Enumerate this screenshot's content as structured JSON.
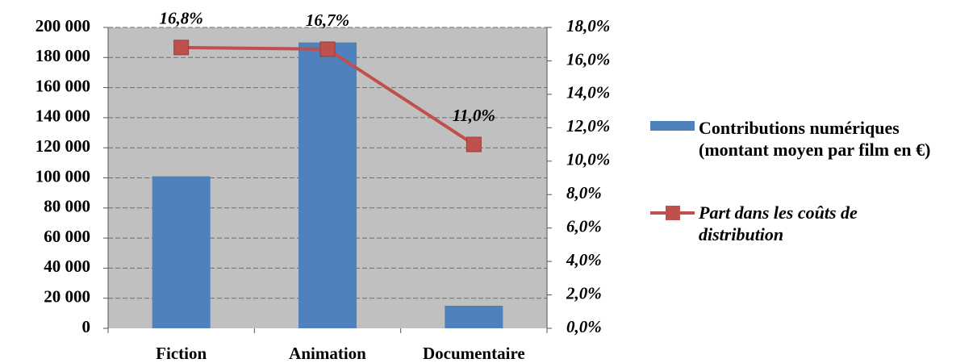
{
  "chart_data": {
    "type": "bar",
    "categories": [
      "Fiction",
      "Animation",
      "Documentaire"
    ],
    "series": [
      {
        "name": "Contributions numériques (montant moyen par film en €)",
        "type": "bar",
        "color": "#4f81bd",
        "values": [
          101000,
          190000,
          15000
        ]
      },
      {
        "name": "Part dans les coûts de distribution",
        "type": "line",
        "axis": "y2",
        "color": "#c0504d",
        "values": [
          16.8,
          16.7,
          11.0
        ],
        "value_labels": [
          "16,8%",
          "16,7%",
          "11,0%"
        ]
      }
    ],
    "ylim": [
      0,
      200000
    ],
    "yticks": [
      0,
      {
        "value": 20000,
        "label": "20 000"
      },
      {
        "value": 40000,
        "label": "40 000"
      },
      {
        "value": 60000,
        "label": "60 000"
      },
      {
        "value": 80000,
        "label": "80 000"
      },
      {
        "value": 100000,
        "label": "100 000"
      },
      {
        "value": 120000,
        "label": "120 000"
      },
      {
        "value": 140000,
        "label": "140 000"
      },
      {
        "value": 160000,
        "label": "160 000"
      },
      {
        "value": 180000,
        "label": "180 000"
      },
      {
        "value": 200000,
        "label": "200 000"
      }
    ],
    "y2lim": [
      0,
      18
    ],
    "y2ticks": [
      {
        "value": 0,
        "label": "0,0%"
      },
      {
        "value": 2,
        "label": "2,0%"
      },
      {
        "value": 4,
        "label": "4,0%"
      },
      {
        "value": 6,
        "label": "6,0%"
      },
      {
        "value": 8,
        "label": "8,0%"
      },
      {
        "value": 10,
        "label": "10,0%"
      },
      {
        "value": 12,
        "label": "12,0%"
      },
      {
        "value": 14,
        "label": "14,0%"
      },
      {
        "value": 16,
        "label": "16,0%"
      },
      {
        "value": 18,
        "label": "18,0%"
      }
    ],
    "grid": true,
    "legend": "right"
  }
}
